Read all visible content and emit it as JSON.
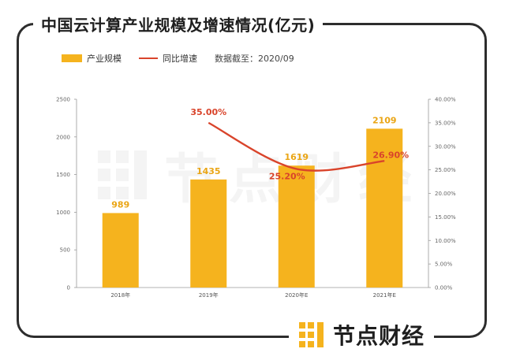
{
  "title": "中国云计算产业规模及增速情况(亿元)",
  "legend": {
    "bar_label": "产业规模",
    "line_label": "同比增速",
    "note": "数据截至：2020/09"
  },
  "brand": "节点财经",
  "colors": {
    "bar": "#F5B31E",
    "line": "#D9442B",
    "frame": "#2d2d2d"
  },
  "chart_data": {
    "type": "bar",
    "categories": [
      "2018年",
      "2019年",
      "2020年E",
      "2021年E"
    ],
    "series": [
      {
        "name": "产业规模",
        "type": "bar",
        "axis": "left",
        "values": [
          989,
          1435,
          1619,
          2109
        ],
        "labels": [
          "989",
          "1435",
          "1619",
          "2109"
        ]
      },
      {
        "name": "同比增速",
        "type": "line",
        "axis": "right",
        "values": [
          null,
          35.0,
          25.2,
          26.9
        ],
        "labels": [
          "",
          "35.00%",
          "25.20%",
          "26.90%"
        ]
      }
    ],
    "ylim_left": [
      0,
      2500
    ],
    "yticks_left": [
      "0",
      "500",
      "1000",
      "1500",
      "2000",
      "2500"
    ],
    "ylim_right": [
      0,
      40
    ],
    "yticks_right": [
      "0.00%",
      "5.00%",
      "10.00%",
      "15.00%",
      "20.00%",
      "25.00%",
      "30.00%",
      "35.00%",
      "40.00%"
    ],
    "grid": false,
    "legend_position": "top-left"
  }
}
